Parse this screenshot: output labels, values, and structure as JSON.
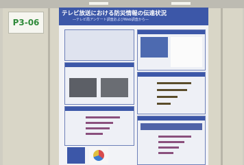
{
  "label": "P3-06",
  "poster": {
    "title": "テレビ放送における防災情報の伝達状況",
    "subtitle": "―テレビ局アンケート調査およびWeb調査から―"
  }
}
